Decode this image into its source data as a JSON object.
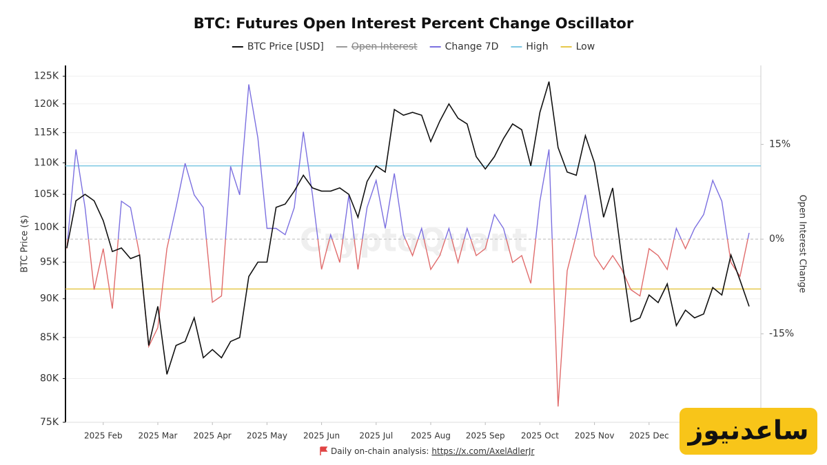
{
  "chart_data": {
    "type": "line",
    "title": "BTC: Futures Open Interest Percent Change Oscillator",
    "watermark": "CryptoQuant",
    "note": "Daily on-chain analysis:",
    "note_link": "https://x.com/AxelAdlerJr",
    "logo_text": "ساعدنیوز",
    "y_label": "BTC Price ($)",
    "y2_label": "Open Interest Change",
    "log_y": true,
    "grid": true,
    "zero_line": true,
    "ylim": [
      75000,
      127000
    ],
    "yticks": [
      {
        "value": 75000,
        "label": "75K"
      },
      {
        "value": 80000,
        "label": "80K"
      },
      {
        "value": 85000,
        "label": "85K"
      },
      {
        "value": 90000,
        "label": "90K"
      },
      {
        "value": 95000,
        "label": "95K"
      },
      {
        "value": 100000,
        "label": "100K"
      },
      {
        "value": 105000,
        "label": "105K"
      },
      {
        "value": 110000,
        "label": "110K"
      },
      {
        "value": 115000,
        "label": "115K"
      },
      {
        "value": 120000,
        "label": "120K"
      },
      {
        "value": 125000,
        "label": "125K"
      }
    ],
    "y2lim": [
      -29,
      27.5
    ],
    "y2ticks": [
      {
        "value": -15,
        "label": "-15%"
      },
      {
        "value": 0,
        "label": "0%"
      },
      {
        "value": 15,
        "label": "15%"
      }
    ],
    "categories": [
      null,
      null,
      null,
      null,
      "2025 Feb",
      null,
      null,
      null,
      null,
      null,
      "2025 Mar",
      null,
      null,
      null,
      null,
      null,
      "2025 Apr",
      null,
      null,
      null,
      null,
      null,
      "2025 May",
      null,
      null,
      null,
      null,
      null,
      "2025 Jun",
      null,
      null,
      null,
      null,
      null,
      "2025 Jul",
      null,
      null,
      null,
      null,
      null,
      "2025 Aug",
      null,
      null,
      null,
      null,
      null,
      "2025 Sep",
      null,
      null,
      null,
      null,
      null,
      "2025 Oct",
      null,
      null,
      null,
      null,
      null,
      "2025 Nov",
      null,
      null,
      null,
      null,
      null,
      "2025 Dec",
      null,
      null,
      null,
      null,
      null,
      null,
      null,
      null,
      null,
      null,
      null
    ],
    "series": [
      {
        "name": "BTC Price [USD]",
        "color": "#111111",
        "values": [
          97000,
          104000,
          105000,
          104000,
          101000,
          96500,
          97000,
          95500,
          96000,
          84000,
          89000,
          80500,
          84000,
          84500,
          87500,
          82500,
          83500,
          82500,
          84500,
          85000,
          93000,
          95000,
          95000,
          103000,
          103500,
          105500,
          108000,
          106000,
          105500,
          105500,
          106000,
          105000,
          101500,
          107000,
          109500,
          108500,
          119000,
          118000,
          118500,
          118000,
          113500,
          117000,
          120000,
          117500,
          116500,
          111000,
          109000,
          111000,
          114000,
          116500,
          115500,
          109500,
          118500,
          124000,
          112500,
          108500,
          108000,
          114500,
          110000,
          101500,
          106000,
          95500,
          87000,
          87500,
          90500,
          89500,
          92000,
          86500,
          88500,
          87500,
          88000,
          91500,
          90500,
          96000,
          92500,
          89000
        ]
      },
      {
        "name": "Open Interest",
        "color": "#999999",
        "hidden": true
      },
      {
        "name": "Change 7D",
        "color": "#7b6fe0",
        "negative_color": "#e06b6b",
        "axis": "y2",
        "values": [
          -1.5,
          14.2,
          5,
          -8,
          -1.5,
          -11,
          6,
          5,
          -2.5,
          -17,
          -14,
          -1.5,
          5,
          12,
          7,
          5,
          -10,
          -9,
          11.5,
          7,
          24.5,
          16,
          1.7,
          1.7,
          0.7,
          5,
          17,
          7,
          -4.8,
          0.7,
          -3.7,
          7,
          -4.8,
          5,
          9.3,
          1.7,
          10.4,
          0.7,
          -2.6,
          1.7,
          -4.8,
          -2.6,
          1.7,
          -3.7,
          1.7,
          -2.6,
          -1.5,
          3.9,
          1.7,
          -3.7,
          -2.6,
          -7,
          6,
          14.2,
          -26.5,
          -5,
          0.7,
          7,
          -2.6,
          -4.8,
          -2.6,
          -4.8,
          -8,
          -9,
          -1.5,
          -2.6,
          -4.8,
          1.7,
          -1.5,
          1.7,
          3.9,
          9.3,
          6,
          -3.7,
          -5.9,
          1
        ]
      }
    ],
    "reference_lines": [
      {
        "name": "High",
        "color": "#7ec8e3",
        "value": 11.6,
        "axis": "y2"
      },
      {
        "name": "Low",
        "color": "#e6c84a",
        "value": -7.9,
        "axis": "y2"
      }
    ]
  }
}
